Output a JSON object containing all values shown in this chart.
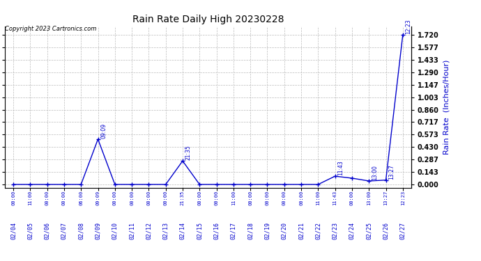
{
  "title": "Rain Rate Daily High 20230228",
  "ylabel": "Rain Rate  (Inches/Hour)",
  "copyright_text": "Copyright 2023 Cartronics.com",
  "line_color": "#0000cc",
  "background_color": "#ffffff",
  "grid_color": "#bbbbbb",
  "yticks": [
    0.0,
    0.143,
    0.287,
    0.43,
    0.573,
    0.717,
    0.86,
    1.003,
    1.147,
    1.29,
    1.433,
    1.577,
    1.72
  ],
  "ylim": [
    -0.04,
    1.82
  ],
  "data_points": [
    {
      "date": "02/04",
      "time": "00:00",
      "value": 0.0
    },
    {
      "date": "02/05",
      "time": "11:00",
      "value": 0.0
    },
    {
      "date": "02/06",
      "time": "00:00",
      "value": 0.0
    },
    {
      "date": "02/07",
      "time": "00:00",
      "value": 0.0
    },
    {
      "date": "02/08",
      "time": "06:00",
      "value": 0.0
    },
    {
      "date": "02/09",
      "time": "09:09",
      "value": 0.52
    },
    {
      "date": "02/10",
      "time": "00:00",
      "value": 0.0
    },
    {
      "date": "02/11",
      "time": "00:00",
      "value": 0.0
    },
    {
      "date": "02/12",
      "time": "00:00",
      "value": 0.0
    },
    {
      "date": "02/13",
      "time": "00:00",
      "value": 0.0
    },
    {
      "date": "02/14",
      "time": "21:35",
      "value": 0.27
    },
    {
      "date": "02/15",
      "time": "00:00",
      "value": 0.0
    },
    {
      "date": "02/16",
      "time": "00:00",
      "value": 0.0
    },
    {
      "date": "02/17",
      "time": "11:00",
      "value": 0.0
    },
    {
      "date": "02/18",
      "time": "00:00",
      "value": 0.0
    },
    {
      "date": "02/19",
      "time": "00:00",
      "value": 0.0
    },
    {
      "date": "02/20",
      "time": "00:00",
      "value": 0.0
    },
    {
      "date": "02/21",
      "time": "00:00",
      "value": 0.0
    },
    {
      "date": "02/22",
      "time": "11:00",
      "value": 0.0
    },
    {
      "date": "02/23",
      "time": "11:43",
      "value": 0.095
    },
    {
      "date": "02/24",
      "time": "00:00",
      "value": 0.072
    },
    {
      "date": "02/25",
      "time": "13:00",
      "value": 0.04
    },
    {
      "date": "02/26",
      "time": "13:27",
      "value": 0.05
    },
    {
      "date": "02/27",
      "time": "12:23",
      "value": 1.72
    }
  ],
  "xticklabels": [
    "02/04",
    "02/05",
    "02/06",
    "02/07",
    "02/08",
    "02/09",
    "02/10",
    "02/11",
    "02/12",
    "02/13",
    "02/14",
    "02/15",
    "02/16",
    "02/17",
    "02/18",
    "02/19",
    "02/20",
    "02/21",
    "02/22",
    "02/23",
    "02/24",
    "02/25",
    "02/26",
    "02/27"
  ],
  "figsize": [
    6.9,
    3.75
  ],
  "dpi": 100
}
